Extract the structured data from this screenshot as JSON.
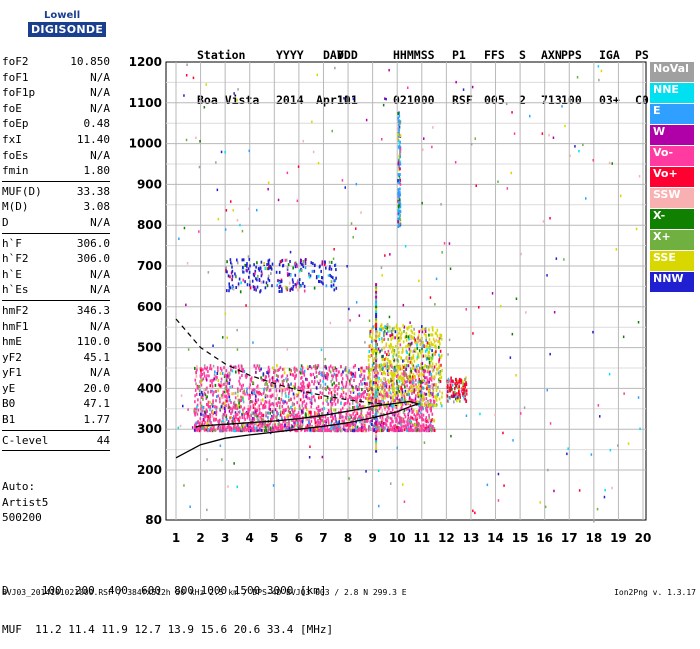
{
  "logo": {
    "line1": "Lowell",
    "line2": "DIGISONDE"
  },
  "header": {
    "cols": [
      "Station",
      "YYYY",
      "DAY",
      "DDD",
      "HHMMSS",
      "P1",
      "FFS",
      "S",
      "AXN",
      "PPS",
      "IGA",
      "PS"
    ],
    "vals": [
      "Boa Vista",
      "2014",
      "Apr11",
      "101",
      "021000",
      "RSF",
      "005",
      "2",
      "713",
      "100",
      "03+",
      "C0"
    ]
  },
  "params": {
    "group1": [
      {
        "k": "foF2",
        "v": "10.850"
      },
      {
        "k": "foF1",
        "v": "N/A"
      },
      {
        "k": "foF1p",
        "v": "N/A"
      },
      {
        "k": "foE",
        "v": "N/A"
      },
      {
        "k": "foEp",
        "v": "0.48"
      },
      {
        "k": "fxI",
        "v": "11.40"
      },
      {
        "k": "foEs",
        "v": "N/A"
      },
      {
        "k": "fmin",
        "v": "1.80"
      }
    ],
    "group2": [
      {
        "k": "MUF(D)",
        "v": "33.38"
      },
      {
        "k": "M(D)",
        "v": "3.08"
      },
      {
        "k": "D",
        "v": "N/A"
      }
    ],
    "group3": [
      {
        "k": "h`F",
        "v": "306.0"
      },
      {
        "k": "h`F2",
        "v": "306.0"
      },
      {
        "k": "h`E",
        "v": "N/A"
      },
      {
        "k": "h`Es",
        "v": "N/A"
      }
    ],
    "group4": [
      {
        "k": "hmF2",
        "v": "346.3"
      },
      {
        "k": "hmF1",
        "v": "N/A"
      },
      {
        "k": "hmE",
        "v": "110.0"
      },
      {
        "k": "yF2",
        "v": "45.1"
      },
      {
        "k": "yF1",
        "v": "N/A"
      },
      {
        "k": "yE",
        "v": "20.0"
      },
      {
        "k": "B0",
        "v": "47.1"
      },
      {
        "k": "B1",
        "v": "1.77"
      }
    ],
    "group5": [
      {
        "k": "C-level",
        "v": "44"
      }
    ]
  },
  "auto": {
    "line1": "Auto:",
    "line2": "Artist5",
    "line3": "500200"
  },
  "legend": [
    {
      "label": "NoVal",
      "color": "#a0a0a0"
    },
    {
      "label": "NNE",
      "color": "#00e0f0"
    },
    {
      "label": "E",
      "color": "#2fa0ff"
    },
    {
      "label": "W",
      "color": "#b000a8"
    },
    {
      "label": "Vo-",
      "color": "#ff3aa0"
    },
    {
      "label": "Vo+",
      "color": "#ff0030"
    },
    {
      "label": "SSW",
      "color": "#f8b0b0"
    },
    {
      "label": "X-",
      "color": "#108000"
    },
    {
      "label": "X+",
      "color": "#70b040"
    },
    {
      "label": "SSE",
      "color": "#d8d800"
    },
    {
      "label": "NNW",
      "color": "#2020d0"
    }
  ],
  "footer": {
    "line1": "D     100  200  400  600  800 1000 1500 3000 [km]",
    "line2": "MUF  11.2 11.4 11.9 12.7 13.9 15.6 20.6 33.4 [MHz]",
    "line3": "BVJ03_2014101021000.RSF / 384fx512h 50 kHz 2.5 km / DPS-4D BVJ03 003 / 2.8 N 299.3 E",
    "version": "Ion2Png v. 1.3.17"
  },
  "chart_data": {
    "type": "scatter",
    "x_ticks": [
      "1",
      "2",
      "3",
      "4",
      "5",
      "6",
      "7",
      "8",
      "9",
      "10",
      "11",
      "12",
      "13",
      "14",
      "15",
      "16",
      "17",
      "18",
      "19",
      "20"
    ],
    "y_ticks": [
      "80",
      "200",
      "300",
      "400",
      "500",
      "600",
      "700",
      "800",
      "900",
      "1000",
      "1100",
      "1200"
    ],
    "xlim": [
      1,
      20
    ],
    "ylim": [
      80,
      1200
    ],
    "y_scale": "virtual-height (nonlinear)",
    "xlabel": "",
    "ylabel": "",
    "series": [
      {
        "color": "#ff3aa0",
        "kind": "echo-cloud",
        "region": {
          "x": [
            1.7,
            11.5
          ],
          "y": [
            300,
            460
          ]
        }
      },
      {
        "color": "#d8d800",
        "kind": "echo-cloud",
        "region": {
          "x": [
            8.8,
            11.8
          ],
          "y": [
            360,
            560
          ]
        }
      },
      {
        "color": "#2020d0",
        "kind": "echo-cloud",
        "region": {
          "x": [
            3.0,
            7.5
          ],
          "y": [
            640,
            720
          ]
        }
      },
      {
        "color": "#2fa0ff",
        "kind": "echo-cloud",
        "region": {
          "x": [
            10.0,
            10.1
          ],
          "y": [
            800,
            1080
          ]
        }
      },
      {
        "color": "#ff0030",
        "kind": "echo-cloud",
        "region": {
          "x": [
            12.0,
            12.8
          ],
          "y": [
            370,
            430
          ]
        }
      }
    ],
    "profile_solid": {
      "x": [
        1.0,
        2.0,
        3.0,
        4.0,
        5.0,
        6.0,
        7.0,
        8.0,
        9.0,
        10.0,
        10.5,
        10.85,
        10.5,
        10.0,
        9.0,
        8.0,
        7.0,
        6.0,
        5.0,
        4.0,
        3.0,
        2.0,
        1.8
      ],
      "y": [
        230,
        262,
        278,
        286,
        293,
        300,
        307,
        316,
        328,
        343,
        355,
        362,
        368,
        364,
        356,
        344,
        334,
        326,
        320,
        316,
        312,
        308,
        306
      ]
    },
    "profile_dashed": {
      "x": [
        1.0,
        1.5,
        2.0,
        3.0,
        4.0,
        5.0,
        6.0,
        7.0,
        8.0,
        9.0,
        10.0
      ],
      "y": [
        570,
        535,
        500,
        460,
        432,
        412,
        395,
        382,
        372,
        364,
        358
      ]
    }
  }
}
